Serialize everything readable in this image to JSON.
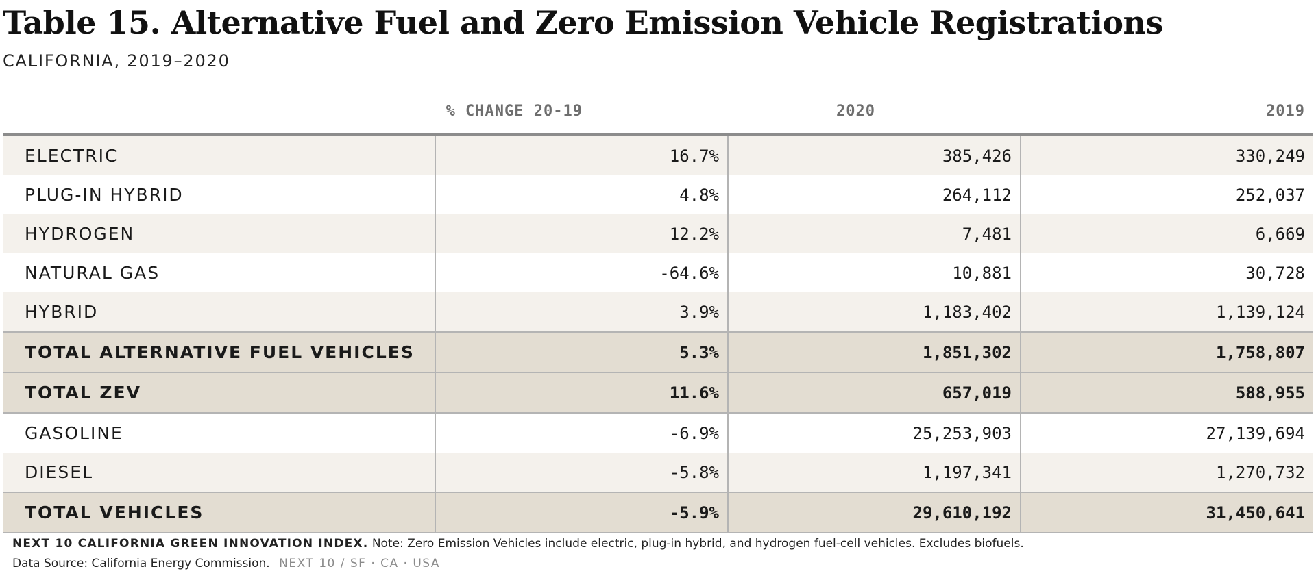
{
  "title": "Table 15. Alternative Fuel and Zero Emission Vehicle Registrations",
  "subtitle": "CALIFORNIA, 2019–2020",
  "columns": {
    "label": "",
    "pct_change": "% CHANGE 20-19",
    "y2020": "2020",
    "y2019": "2019"
  },
  "rows": [
    {
      "label": "ELECTRIC",
      "pct_change": "16.7%",
      "y2020": "385,426",
      "y2019": "330,249"
    },
    {
      "label": "PLUG-IN HYBRID",
      "pct_change": "4.8%",
      "y2020": "264,112",
      "y2019": "252,037"
    },
    {
      "label": "HYDROGEN",
      "pct_change": "12.2%",
      "y2020": "7,481",
      "y2019": "6,669"
    },
    {
      "label": "NATURAL GAS",
      "pct_change": "-64.6%",
      "y2020": "10,881",
      "y2019": "30,728"
    },
    {
      "label": "HYBRID",
      "pct_change": "3.9%",
      "y2020": "1,183,402",
      "y2019": "1,139,124"
    },
    {
      "label": "TOTAL ALTERNATIVE FUEL VEHICLES",
      "pct_change": "5.3%",
      "y2020": "1,851,302",
      "y2019": "1,758,807"
    },
    {
      "label": "TOTAL ZEV",
      "pct_change": "11.6%",
      "y2020": "657,019",
      "y2019": "588,955"
    },
    {
      "label": "GASOLINE",
      "pct_change": "-6.9%",
      "y2020": "25,253,903",
      "y2019": "27,139,694"
    },
    {
      "label": "DIESEL",
      "pct_change": "-5.8%",
      "y2020": "1,197,341",
      "y2019": "1,270,732"
    },
    {
      "label": "TOTAL VEHICLES",
      "pct_change": "-5.9%",
      "y2020": "29,610,192",
      "y2019": "31,450,641"
    }
  ],
  "footer": {
    "brand": "NEXT 10 CALIFORNIA GREEN INNOVATION INDEX.",
    "note": "Note: Zero Emission Vehicles include electric, plug-in hybrid, and hydrogen fuel-cell vehicles. Excludes biofuels.",
    "source": "Data Source: California Energy Commission.",
    "brand_tag": "NEXT 10  /  SF · CA · USA"
  },
  "colors": {
    "shaded_row": "#f4f1ec",
    "total_row": "#e3ddd2",
    "header_text": "#6e6e6e",
    "rule": "#8c8c8c"
  }
}
